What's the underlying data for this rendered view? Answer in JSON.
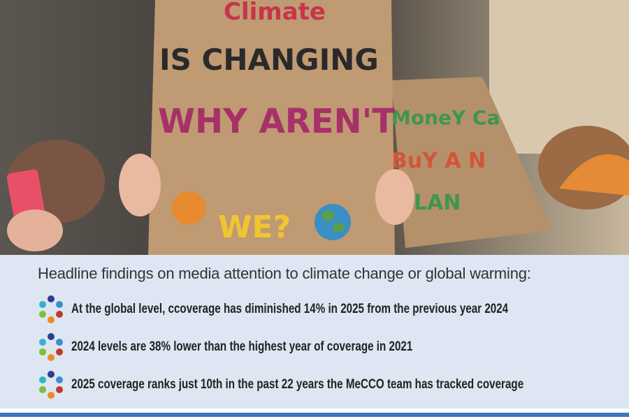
{
  "photo": {
    "signs": [
      {
        "lines": [
          "Climate",
          "IS CHANGING",
          "WHY AREN'T",
          "WE?"
        ]
      },
      {
        "lines": [
          "MoneY Ca",
          "BuY A N",
          "PLAN"
        ]
      }
    ]
  },
  "findings": {
    "heading": "Headline findings on media attention to climate change or global warming:",
    "items": [
      "At the global level, ccoverage has diminished 14% in 2025 from the previous year 2024",
      "2024 levels are 38% lower than the highest year of coverage in 2021",
      "2025 coverage ranks just 10th in the past 22 years the MeCCO team has tracked coverage"
    ]
  }
}
